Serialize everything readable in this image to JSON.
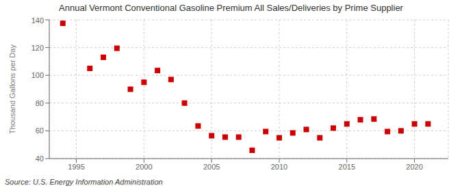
{
  "chart_data": {
    "type": "scatter",
    "title": "Annual Vermont Conventional Gasoline Premium All Sales/Deliveries by Prime Supplier",
    "y_label": "Thousand Gallons per Day",
    "annotations": [
      "Source: U.S. Energy Information Administration"
    ],
    "x": [
      1994,
      1996,
      1997,
      1998,
      1999,
      2000,
      2001,
      2002,
      2003,
      2004,
      2005,
      2006,
      2007,
      2008,
      2009,
      2010,
      2011,
      2012,
      2013,
      2014,
      2015,
      2016,
      2017,
      2018,
      2019,
      2020,
      2021
    ],
    "values": [
      137.5,
      105.0,
      113.0,
      119.5,
      90.0,
      95.0,
      103.5,
      97.0,
      80.0,
      63.5,
      56.5,
      55.5,
      55.5,
      46.0,
      59.5,
      55.0,
      58.5,
      61.0,
      55.0,
      62.0,
      65.0,
      68.0,
      68.5,
      59.5,
      60.0,
      65.0,
      65.0
    ],
    "color": "#cc0000",
    "marker": "square",
    "xlim": [
      1993.0,
      2022.5
    ],
    "ylim": [
      40,
      140
    ],
    "xticks": [
      1995,
      2000,
      2005,
      2010,
      2015,
      2020
    ],
    "yticks": [
      40,
      60,
      80,
      100,
      120,
      140
    ],
    "grid": true
  }
}
